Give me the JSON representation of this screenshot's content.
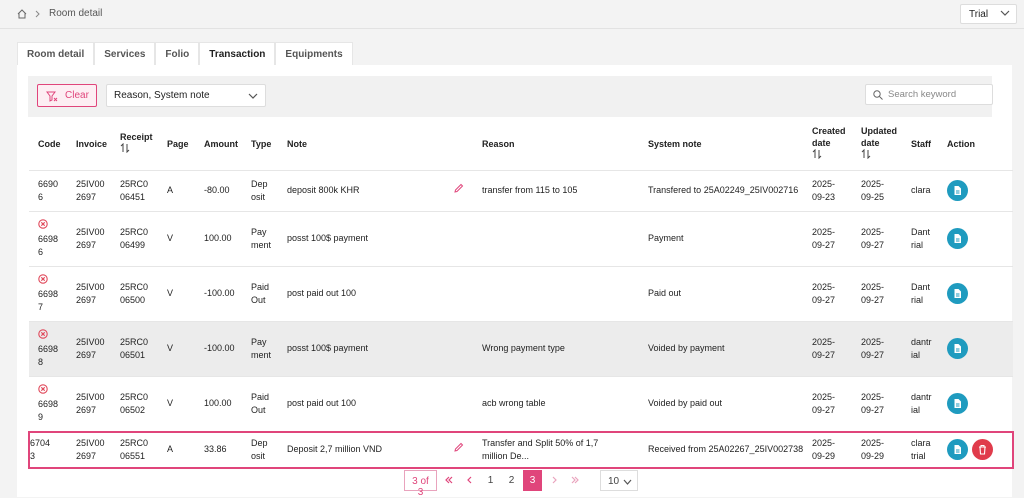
{
  "breadcrumb": {
    "current": "Room detail"
  },
  "property_select": "Trial",
  "tabs": [
    "Room detail",
    "Services",
    "Folio",
    "Transaction",
    "Equipments"
  ],
  "active_tab": 3,
  "filters": {
    "clear": "Clear",
    "columns": "Reason, System note",
    "search_placeholder": "Search keyword"
  },
  "table": {
    "columns": [
      "Code",
      "Invoice",
      "Receipt",
      "Page",
      "Amount",
      "Type",
      "Note",
      "Reason",
      "System note",
      "Created date",
      "Updated date",
      "Staff",
      "Action"
    ],
    "rows": [
      {
        "code": "66906",
        "invoice": "25IV002697",
        "receipt": "25RC006451",
        "page": "A",
        "amount": "-80.00",
        "type": "Deposit",
        "note": "deposit 800k KHR",
        "reason": "transfer from 115 to 105",
        "system_note": "Transfered to 25A02249_25IV002716",
        "created": "2025-09-23",
        "updated": "2025-09-25",
        "staff": "clara",
        "voided": false,
        "editable": true,
        "deletable": false,
        "highlighted": false,
        "selected": false
      },
      {
        "code": "66986",
        "invoice": "25IV002697",
        "receipt": "25RC006499",
        "page": "V",
        "amount": "100.00",
        "type": "Payment",
        "note": "posst 100$ payment",
        "reason": null,
        "system_note": "Payment",
        "created": "2025-09-27",
        "updated": "2025-09-27",
        "staff": "Dantrial",
        "voided": true,
        "editable": false,
        "deletable": false,
        "highlighted": false,
        "selected": false
      },
      {
        "code": "66987",
        "invoice": "25IV002697",
        "receipt": "25RC006500",
        "page": "V",
        "amount": "-100.00",
        "type": "Paid Out",
        "note": "post paid out 100",
        "reason": null,
        "system_note": "Paid out",
        "created": "2025-09-27",
        "updated": "2025-09-27",
        "staff": "Dantrial",
        "voided": true,
        "editable": false,
        "deletable": false,
        "highlighted": false,
        "selected": false
      },
      {
        "code": "66988",
        "invoice": "25IV002697",
        "receipt": "25RC006501",
        "page": "V",
        "amount": "-100.00",
        "type": "Payment",
        "note": "posst 100$ payment",
        "reason": "Wrong payment type",
        "system_note": "Voided by payment",
        "created": "2025-09-27",
        "updated": "2025-09-27",
        "staff": "dantrial",
        "voided": true,
        "editable": false,
        "deletable": false,
        "highlighted": true,
        "selected": false
      },
      {
        "code": "66989",
        "invoice": "25IV002697",
        "receipt": "25RC006502",
        "page": "V",
        "amount": "100.00",
        "type": "Paid Out",
        "note": "post paid out 100",
        "reason": "acb wrong table",
        "system_note": "Voided by paid out",
        "created": "2025-09-27",
        "updated": "2025-09-27",
        "staff": "dantrial",
        "voided": true,
        "editable": false,
        "deletable": false,
        "highlighted": false,
        "selected": false
      },
      {
        "code": "67043",
        "invoice": "25IV002697",
        "receipt": "25RC006551",
        "page": "A",
        "amount": "33.86",
        "type": "Deposit",
        "note": "Deposit 2,7 million VND",
        "reason": "Transfer and Split 50% of 1,7 million De...",
        "system_note": "Received from 25A02267_25IV002738",
        "created": "2025-09-29",
        "updated": "2025-09-29",
        "staff": "clara trial",
        "voided": false,
        "editable": true,
        "deletable": true,
        "highlighted": false,
        "selected": true
      }
    ]
  },
  "pagination": {
    "summary": "3 of 3",
    "pages": [
      1,
      2,
      3
    ],
    "current": 3,
    "page_size": 10
  }
}
